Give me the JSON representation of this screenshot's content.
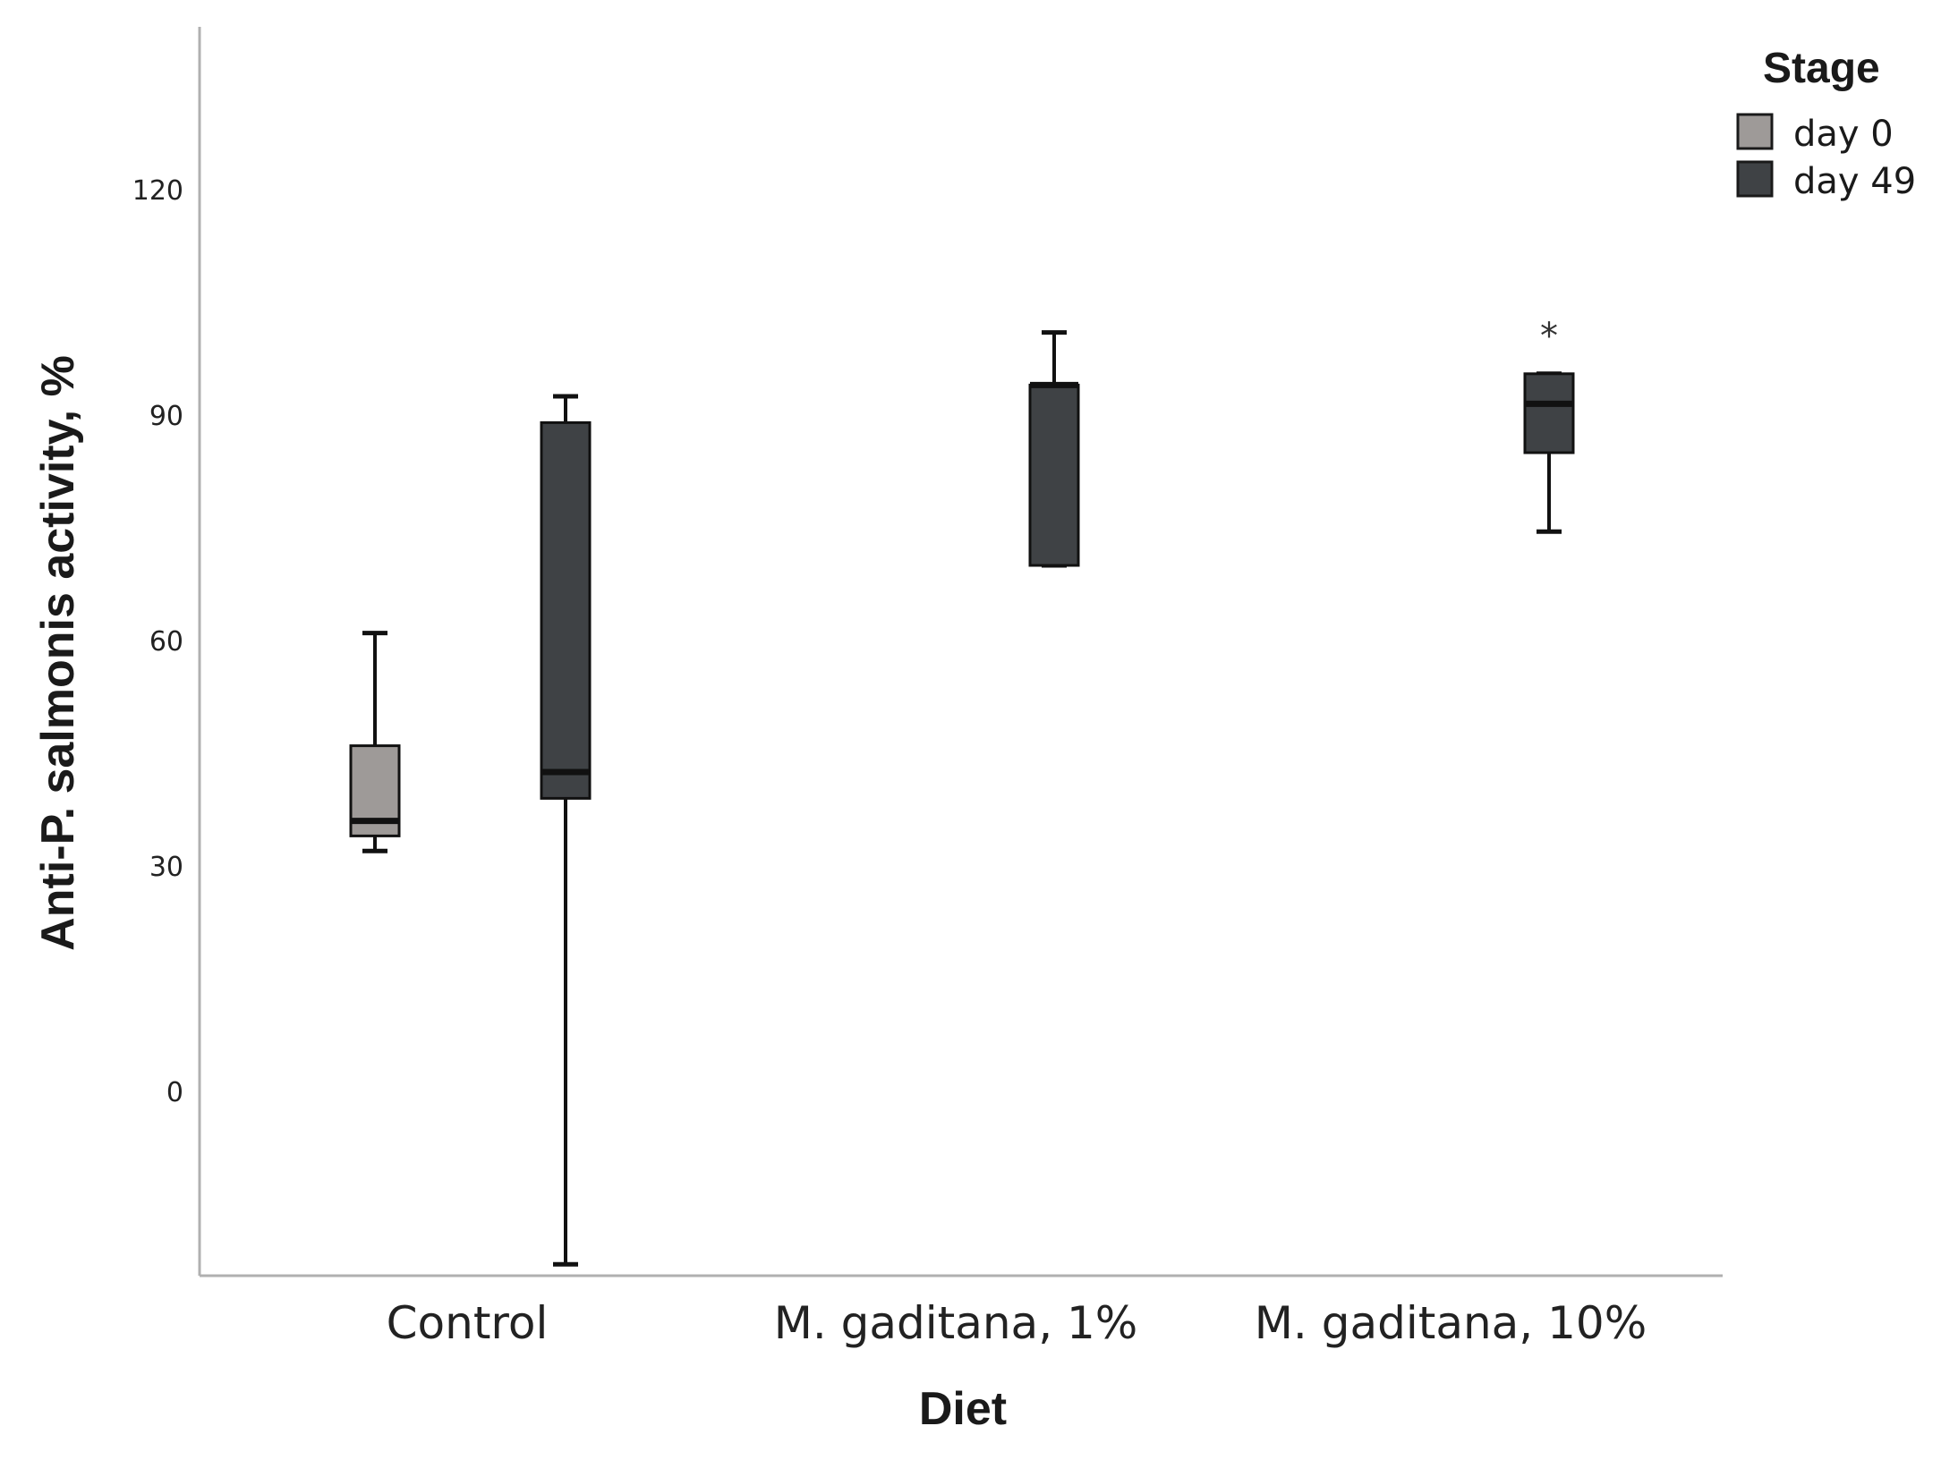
{
  "chart_data": {
    "type": "box",
    "xlabel": "Diet",
    "ylabel": "Anti-P. salmonis activity, %",
    "ylim": [
      -35,
      140
    ],
    "yticks": [
      0,
      30,
      60,
      90,
      120
    ],
    "categories": [
      "Control",
      "M. gaditana, 1%",
      "M. gaditana, 10%"
    ],
    "legend": {
      "title": "Stage",
      "position": "top-right"
    },
    "series": [
      {
        "name": "day 0",
        "color": "#9e9a98",
        "boxes": [
          {
            "category": "Control",
            "min": 32,
            "q1": 34,
            "median": 36,
            "q3": 46,
            "max": 61
          }
        ]
      },
      {
        "name": "day 49",
        "color": "#3f4245",
        "boxes": [
          {
            "category": "Control",
            "min": -23,
            "q1": 39,
            "median": 42.5,
            "q3": 89,
            "max": 92.5
          },
          {
            "category": "M. gaditana, 1%",
            "min": 70,
            "q1": 70,
            "median": 94,
            "q3": 94,
            "max": 101
          },
          {
            "category": "M. gaditana, 10%",
            "min": 74.5,
            "q1": 85,
            "median": 91.5,
            "q3": 95.5,
            "max": 95.5,
            "outliers": [
              {
                "value": 102,
                "symbol": "*"
              }
            ]
          }
        ]
      }
    ]
  }
}
